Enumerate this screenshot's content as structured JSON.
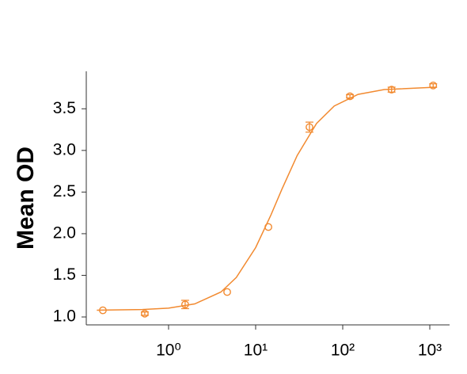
{
  "chart_data": {
    "type": "scatter",
    "y_label": "Mean OD",
    "x_scale": "log",
    "color": "#f28a30",
    "xlim": [
      0.1135,
      1687
    ],
    "ylim": [
      0.905,
      3.95
    ],
    "xticks": [
      {
        "value": 1,
        "label": "10⁰"
      },
      {
        "value": 10,
        "label": "10¹"
      },
      {
        "value": 100,
        "label": "10²"
      },
      {
        "value": 1000,
        "label": "10³"
      }
    ],
    "yticks": [
      {
        "value": 1,
        "label": "1.0"
      },
      1.5,
      {
        "value": 2,
        "label": "2.0"
      },
      2.5,
      {
        "value": 3,
        "label": "3.0"
      },
      3.5
    ],
    "points": {
      "x": [
        0.176,
        0.533,
        1.55,
        4.71,
        14.0,
        41.5,
        121,
        364,
        1093
      ],
      "values": [
        1.08,
        1.04,
        1.15,
        1.3,
        2.08,
        3.28,
        3.65,
        3.73,
        3.78
      ],
      "errors": [
        null,
        0.02,
        0.05,
        null,
        null,
        0.06,
        0.02,
        0.03,
        0.02
      ]
    },
    "fit": {
      "x": [
        0.15,
        0.5,
        1,
        2,
        4,
        6,
        10,
        15,
        20,
        30,
        50,
        80,
        150,
        300,
        1000,
        1200
      ],
      "values": [
        1.081,
        1.089,
        1.106,
        1.157,
        1.3,
        1.474,
        1.833,
        2.226,
        2.533,
        2.939,
        3.323,
        3.534,
        3.673,
        3.731,
        3.756,
        3.757
      ]
    }
  }
}
